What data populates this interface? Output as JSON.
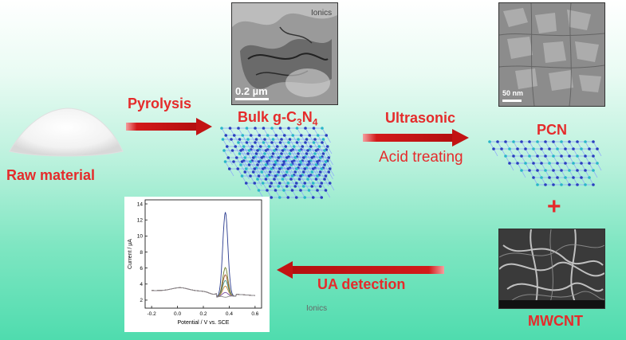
{
  "labels": {
    "raw_material": "Raw material",
    "pyrolysis": "Pyrolysis",
    "bulk_prefix": "Bulk g-C",
    "bulk_sub1": "3",
    "bulk_mid": "N",
    "bulk_sub2": "4",
    "ultrasonic": "Ultrasonic",
    "acid_treating": "Acid treating",
    "pcn": "PCN",
    "plus": "+",
    "mwcnt": "MWCNT",
    "ua_detection": "UA detection"
  },
  "images": {
    "tem_bulk": {
      "watermark": "Ionics",
      "scale_label": "0.2 µm"
    },
    "sem_pcn": {
      "scale_label": "50 nm"
    },
    "sem_mwcnt": {}
  },
  "watermark_center": "Ionics",
  "colors": {
    "label_red": "#e52b2b",
    "arrow_red": "#d21a1a",
    "lattice_blue": "#2b3fbf",
    "lattice_cyan": "#29b7c8"
  },
  "chart_data": {
    "type": "line",
    "xlabel": "Potential / V vs. SCE",
    "ylabel": "Current / μA",
    "xlim": [
      -0.25,
      0.65
    ],
    "ylim": [
      1,
      14.5
    ],
    "x_ticks": [
      "-0.2",
      "0.0",
      "0.2",
      "0.4",
      "0.6"
    ],
    "y_ticks": [
      "2",
      "4",
      "6",
      "8",
      "10",
      "12",
      "14"
    ],
    "baseline": 3.2,
    "broad_peak": {
      "x": 0.02,
      "height": 0.4
    },
    "peak_x": 0.37,
    "peak_heights": [
      13.2,
      6.3,
      5.4,
      4.7,
      4.0,
      3.2,
      2.6
    ]
  }
}
